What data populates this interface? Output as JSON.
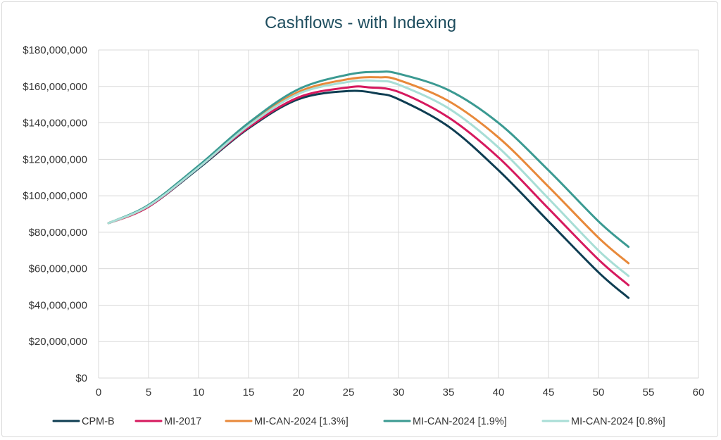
{
  "chart_data": {
    "type": "line",
    "title": "Cashflows - with Indexing",
    "xlabel": "",
    "ylabel": "",
    "xlim": [
      0,
      60
    ],
    "ylim": [
      0,
      180000000
    ],
    "x_ticks": [
      0,
      5,
      10,
      15,
      20,
      25,
      30,
      35,
      40,
      45,
      50,
      55,
      60
    ],
    "x_tick_labels": [
      "0",
      "5",
      "10",
      "15",
      "20",
      "25",
      "30",
      "35",
      "40",
      "45",
      "50",
      "55",
      "60"
    ],
    "y_ticks": [
      0,
      20000000,
      40000000,
      60000000,
      80000000,
      100000000,
      120000000,
      140000000,
      160000000,
      180000000
    ],
    "y_tick_labels": [
      "$0",
      "$20,000,000",
      "$40,000,000",
      "$60,000,000",
      "$80,000,000",
      "$100,000,000",
      "$120,000,000",
      "$140,000,000",
      "$160,000,000",
      "$180,000,000"
    ],
    "grid": "horizontal and vertical major",
    "legend_position": "bottom",
    "series": [
      {
        "name": "CPM-B",
        "color": "#0e3d52",
        "x": [
          1,
          5,
          10,
          15,
          20,
          25,
          28,
          30,
          35,
          40,
          45,
          50,
          53
        ],
        "values": [
          85000000,
          94000000,
          115000000,
          137000000,
          153000000,
          157500000,
          156000000,
          153000000,
          138000000,
          114000000,
          86000000,
          58000000,
          44000000
        ]
      },
      {
        "name": "MI-2017",
        "color": "#d6195e",
        "x": [
          1,
          5,
          10,
          15,
          20,
          25,
          27,
          30,
          35,
          40,
          45,
          50,
          53
        ],
        "values": [
          85000000,
          94000000,
          115500000,
          137500000,
          154000000,
          159500000,
          159500000,
          157000000,
          143000000,
          121000000,
          93000000,
          65000000,
          51000000
        ]
      },
      {
        "name": "MI-CAN-2024 [1.3%]",
        "color": "#e8893a",
        "x": [
          1,
          5,
          10,
          15,
          20,
          25,
          28,
          30,
          35,
          40,
          45,
          50,
          53
        ],
        "values": [
          85000000,
          94500000,
          116000000,
          139000000,
          157000000,
          164000000,
          165000000,
          163500000,
          152000000,
          132000000,
          105000000,
          77000000,
          63000000
        ]
      },
      {
        "name": "MI-CAN-2024 [1.9%]",
        "color": "#3b9a92",
        "x": [
          1,
          5,
          10,
          15,
          20,
          25,
          28,
          30,
          35,
          40,
          45,
          50,
          53
        ],
        "values": [
          85000000,
          95000000,
          116500000,
          140000000,
          158500000,
          166500000,
          168000000,
          167000000,
          158000000,
          140000000,
          114000000,
          86000000,
          72000000
        ]
      },
      {
        "name": "MI-CAN-2024 [0.8%]",
        "color": "#a8ded6",
        "x": [
          1,
          5,
          10,
          15,
          20,
          25,
          28,
          30,
          35,
          40,
          45,
          50,
          53
        ],
        "values": [
          85000000,
          94500000,
          115500000,
          138500000,
          156000000,
          162500000,
          163000000,
          161000000,
          148000000,
          126500000,
          98500000,
          70000000,
          56000000
        ]
      }
    ]
  }
}
